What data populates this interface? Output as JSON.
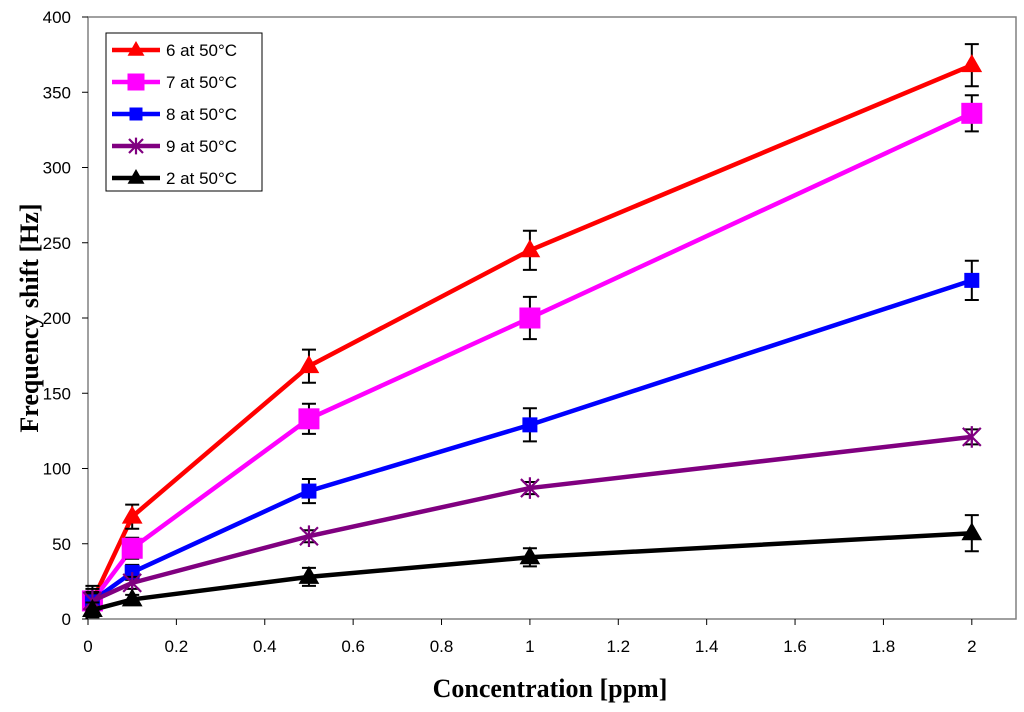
{
  "chart_data": {
    "type": "line",
    "title": "",
    "xlabel": "Concentration [ppm]",
    "ylabel": "Frequency shift [Hz]",
    "xlim": [
      0,
      2.1
    ],
    "ylim": [
      0,
      400
    ],
    "xticks": [
      0,
      0.2,
      0.4,
      0.6,
      0.8,
      1,
      1.2,
      1.4,
      1.6,
      1.8,
      2
    ],
    "xtick_labels": [
      "0",
      "0.2",
      "0.4",
      "0.6",
      "0.8",
      "1",
      "1.2",
      "1.4",
      "1.6",
      "1.8",
      "2"
    ],
    "yticks": [
      0,
      50,
      100,
      150,
      200,
      250,
      300,
      350,
      400
    ],
    "ytick_labels": [
      "0",
      "50",
      "100",
      "150",
      "200",
      "250",
      "300",
      "350",
      "400"
    ],
    "grid": false,
    "legend_position": "top-left",
    "x": [
      0.01,
      0.1,
      0.5,
      1,
      2
    ],
    "series": [
      {
        "name": "6 at 50°C",
        "color": "#ff0000",
        "marker": "triangle",
        "values": [
          12,
          68,
          168,
          245,
          368
        ],
        "errors": [
          10,
          8,
          11,
          13,
          14
        ]
      },
      {
        "name": "7 at 50°C",
        "color": "#ff00ff",
        "marker": "square",
        "values": [
          12,
          47,
          133,
          200,
          336
        ],
        "errors": [
          8,
          7,
          10,
          14,
          12
        ]
      },
      {
        "name": "8 at 50°C",
        "color": "#0000ff",
        "marker": "square-small",
        "values": [
          12,
          31,
          85,
          129,
          225
        ],
        "errors": [
          6,
          5,
          8,
          11,
          13
        ]
      },
      {
        "name": "9 at 50°C",
        "color": "#800080",
        "marker": "star",
        "values": [
          12,
          24,
          55,
          87,
          121
        ],
        "errors": [
          5,
          4,
          4,
          4,
          5
        ]
      },
      {
        "name": "2 at 50°C",
        "color": "#000000",
        "marker": "triangle",
        "values": [
          6,
          13,
          28,
          41,
          57
        ],
        "errors": [
          5,
          3,
          6,
          6,
          12
        ]
      }
    ]
  }
}
